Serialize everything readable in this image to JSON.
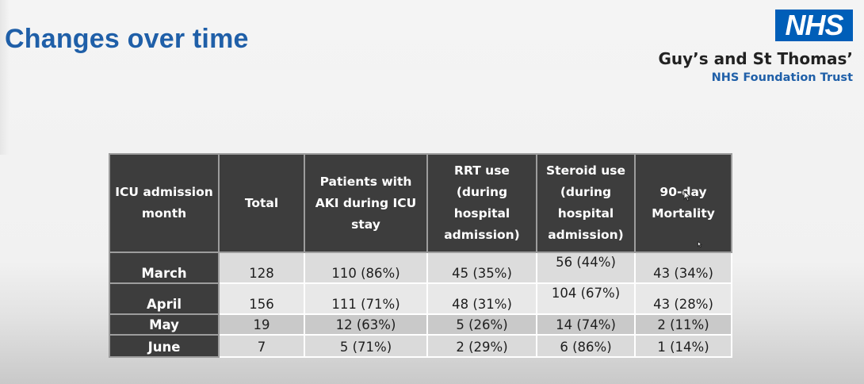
{
  "slide": {
    "title": "Changes over time"
  },
  "logo": {
    "nhs": "NHS",
    "trust_name": "Guy’s and St Thomas’",
    "trust_sub": "NHS Foundation Trust",
    "brand_color": "#005eb8"
  },
  "table": {
    "headers": [
      "ICU admission month",
      "Total",
      "Patients with AKI during ICU stay",
      "RRT use (during hospital admission)",
      "Steroid use (during hospital admission)",
      "90-day Mortality"
    ],
    "rows": [
      [
        "March",
        "128",
        "110 (86%)",
        "45 (35%)",
        "56 (44%)",
        "43 (34%)"
      ],
      [
        "April",
        "156",
        "111 (71%)",
        "48 (31%)",
        "104 (67%)",
        "43 (28%)"
      ],
      [
        "May",
        "19",
        "12 (63%)",
        "5 (26%)",
        "14 (74%)",
        "2 (11%)"
      ],
      [
        "June",
        "7",
        "5 (71%)",
        "2 (29%)",
        "6 (86%)",
        "1 (14%)"
      ]
    ]
  },
  "colors": {
    "title": "#1f5fa8",
    "header_bg": "#3d3d3d",
    "header_text": "#ffffff"
  }
}
